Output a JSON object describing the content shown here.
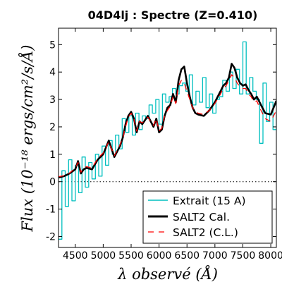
{
  "chart_data": {
    "type": "line",
    "title": "04D4lj : Spectre (Z=0.410)",
    "xlabel": "λ observé (Å)",
    "ylabel": "Flux (10⁻¹⁸ ergs/cm²/s/Å)",
    "xlim": [
      4200,
      8100
    ],
    "ylim": [
      -2.4,
      5.6
    ],
    "x_ticks": [
      4500,
      5000,
      5500,
      6000,
      6500,
      7000,
      7500,
      8000
    ],
    "y_ticks": [
      -2,
      -1,
      0,
      1,
      2,
      3,
      4,
      5
    ],
    "zero_line": 0,
    "grid": false,
    "legend_position": "lower-right",
    "series": [
      {
        "name": "Extrait (15 A)",
        "style": "step",
        "color": "#00bfbf",
        "x": [
          4200,
          4260,
          4320,
          4380,
          4440,
          4500,
          4560,
          4620,
          4680,
          4740,
          4800,
          4860,
          4920,
          4980,
          5040,
          5100,
          5160,
          5220,
          5280,
          5340,
          5400,
          5460,
          5520,
          5580,
          5640,
          5700,
          5760,
          5820,
          5880,
          5940,
          6000,
          6060,
          6120,
          6180,
          6240,
          6300,
          6360,
          6420,
          6480,
          6540,
          6600,
          6660,
          6720,
          6780,
          6840,
          6900,
          6960,
          7020,
          7080,
          7140,
          7200,
          7260,
          7320,
          7380,
          7440,
          7500,
          7560,
          7620,
          7680,
          7740,
          7800,
          7860,
          7920,
          7980,
          8040,
          8100
        ],
        "y": [
          -2.1,
          0.4,
          -0.9,
          0.8,
          -0.7,
          0.6,
          -0.4,
          0.9,
          -0.2,
          0.7,
          0.1,
          1.0,
          0.2,
          1.3,
          0.6,
          1.5,
          1.0,
          1.7,
          1.2,
          2.3,
          1.8,
          2.4,
          1.7,
          2.5,
          1.9,
          2.4,
          2.3,
          2.8,
          2.5,
          3.0,
          2.1,
          3.2,
          2.9,
          3.1,
          3.4,
          3.2,
          3.5,
          3.6,
          3.3,
          3.9,
          2.8,
          3.3,
          2.9,
          3.8,
          2.7,
          3.2,
          2.5,
          3.0,
          3.1,
          3.7,
          3.3,
          4.0,
          3.4,
          4.1,
          3.2,
          5.1,
          3.2,
          3.8,
          3.3,
          3.0,
          1.4,
          3.6,
          2.2,
          2.9,
          1.9,
          2.6
        ]
      },
      {
        "name": "SALT2 Cal.",
        "style": "line",
        "color": "#000000",
        "x": [
          4200,
          4300,
          4400,
          4500,
          4550,
          4600,
          4650,
          4700,
          4800,
          4900,
          5000,
          5100,
          5200,
          5300,
          5350,
          5400,
          5450,
          5500,
          5550,
          5600,
          5650,
          5700,
          5800,
          5900,
          5950,
          6000,
          6050,
          6100,
          6150,
          6200,
          6250,
          6300,
          6350,
          6400,
          6450,
          6500,
          6550,
          6600,
          6650,
          6700,
          6800,
          6900,
          7000,
          7100,
          7150,
          7200,
          7250,
          7300,
          7350,
          7400,
          7450,
          7500,
          7550,
          7600,
          7650,
          7700,
          7750,
          7800,
          7900,
          8000,
          8100
        ],
        "y": [
          0.15,
          0.2,
          0.3,
          0.45,
          0.75,
          0.3,
          0.45,
          0.5,
          0.45,
          0.8,
          1.0,
          1.5,
          0.9,
          1.3,
          1.6,
          2.1,
          2.4,
          2.55,
          2.3,
          1.8,
          2.2,
          2.1,
          2.4,
          2.0,
          2.3,
          1.8,
          1.9,
          2.4,
          2.7,
          2.8,
          3.2,
          2.9,
          3.7,
          4.1,
          4.2,
          3.6,
          3.1,
          2.7,
          2.5,
          2.45,
          2.4,
          2.6,
          2.9,
          3.3,
          3.5,
          3.6,
          3.8,
          4.3,
          4.15,
          3.8,
          3.6,
          3.5,
          3.55,
          3.35,
          3.2,
          3.0,
          3.1,
          2.9,
          2.5,
          2.45,
          2.95
        ]
      },
      {
        "name": "SALT2 (C.L.)",
        "style": "dashed",
        "color": "#ff0000",
        "x": [
          4200,
          4300,
          4400,
          4500,
          4550,
          4600,
          4650,
          4700,
          4800,
          4900,
          5000,
          5100,
          5200,
          5300,
          5350,
          5400,
          5450,
          5500,
          5550,
          5600,
          5650,
          5700,
          5800,
          5900,
          5950,
          6000,
          6050,
          6100,
          6150,
          6200,
          6250,
          6300,
          6350,
          6400,
          6450,
          6500,
          6550,
          6600,
          6650,
          6700,
          6800,
          6900,
          7000,
          7100,
          7150,
          7200,
          7250,
          7300,
          7350,
          7400,
          7450,
          7500,
          7550,
          7600,
          7650,
          7700,
          7750,
          7800,
          7900,
          8000,
          8100
        ],
        "y": [
          0.18,
          0.22,
          0.32,
          0.5,
          0.7,
          0.35,
          0.5,
          0.55,
          0.5,
          0.85,
          1.05,
          1.45,
          0.95,
          1.35,
          1.6,
          2.0,
          2.35,
          2.5,
          2.3,
          1.85,
          2.2,
          2.15,
          2.35,
          2.05,
          2.3,
          1.85,
          1.95,
          2.4,
          2.6,
          2.75,
          3.1,
          2.85,
          3.5,
          3.7,
          3.6,
          3.3,
          3.0,
          2.7,
          2.55,
          2.5,
          2.45,
          2.6,
          2.85,
          3.2,
          3.4,
          3.5,
          3.7,
          3.9,
          3.8,
          3.6,
          3.45,
          3.4,
          3.4,
          3.2,
          3.1,
          2.9,
          2.95,
          2.7,
          2.3,
          2.2,
          2.6
        ]
      }
    ]
  }
}
